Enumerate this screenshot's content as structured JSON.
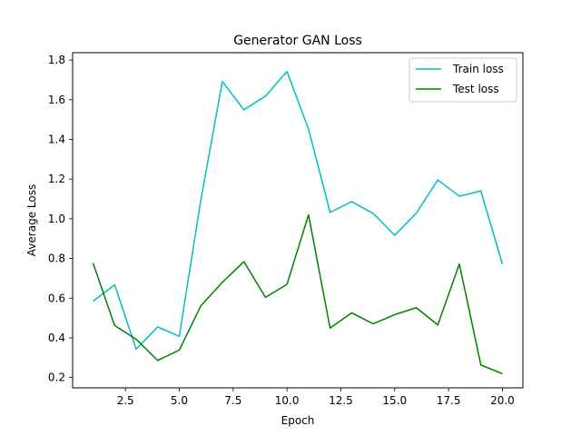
{
  "chart_data": {
    "type": "line",
    "title": "Generator GAN Loss",
    "xlabel": "Epoch",
    "ylabel": "Average Loss",
    "xlim": [
      0.05,
      20.95
    ],
    "ylim": [
      0.148,
      1.837
    ],
    "xticks": [
      2.5,
      5.0,
      7.5,
      10.0,
      12.5,
      15.0,
      17.5,
      20.0
    ],
    "xtick_labels": [
      "2.5",
      "5.0",
      "7.5",
      "10.0",
      "12.5",
      "15.0",
      "17.5",
      "20.0"
    ],
    "yticks": [
      0.2,
      0.4,
      0.6,
      0.8,
      1.0,
      1.2,
      1.4,
      1.6,
      1.8
    ],
    "ytick_labels": [
      "0.2",
      "0.4",
      "0.6",
      "0.8",
      "1.0",
      "1.2",
      "1.4",
      "1.6",
      "1.8"
    ],
    "grid": false,
    "legend_position": "top-right",
    "x": [
      1,
      2,
      3,
      4,
      5,
      6,
      7,
      8,
      9,
      10,
      11,
      12,
      13,
      14,
      15,
      16,
      17,
      18,
      19,
      20
    ],
    "series": [
      {
        "name": "Train loss",
        "color": "#00bfbf",
        "values": [
          0.585,
          0.667,
          0.343,
          0.455,
          0.408,
          1.094,
          1.692,
          1.549,
          1.618,
          1.742,
          1.452,
          1.032,
          1.086,
          1.027,
          0.917,
          1.028,
          1.196,
          1.114,
          1.14,
          0.771
        ]
      },
      {
        "name": "Test loss",
        "color": "#008000",
        "values": [
          0.776,
          0.462,
          0.393,
          0.286,
          0.338,
          0.561,
          0.68,
          0.784,
          0.604,
          0.67,
          1.02,
          0.449,
          0.526,
          0.471,
          0.517,
          0.552,
          0.465,
          0.772,
          0.263,
          0.219
        ]
      }
    ]
  }
}
